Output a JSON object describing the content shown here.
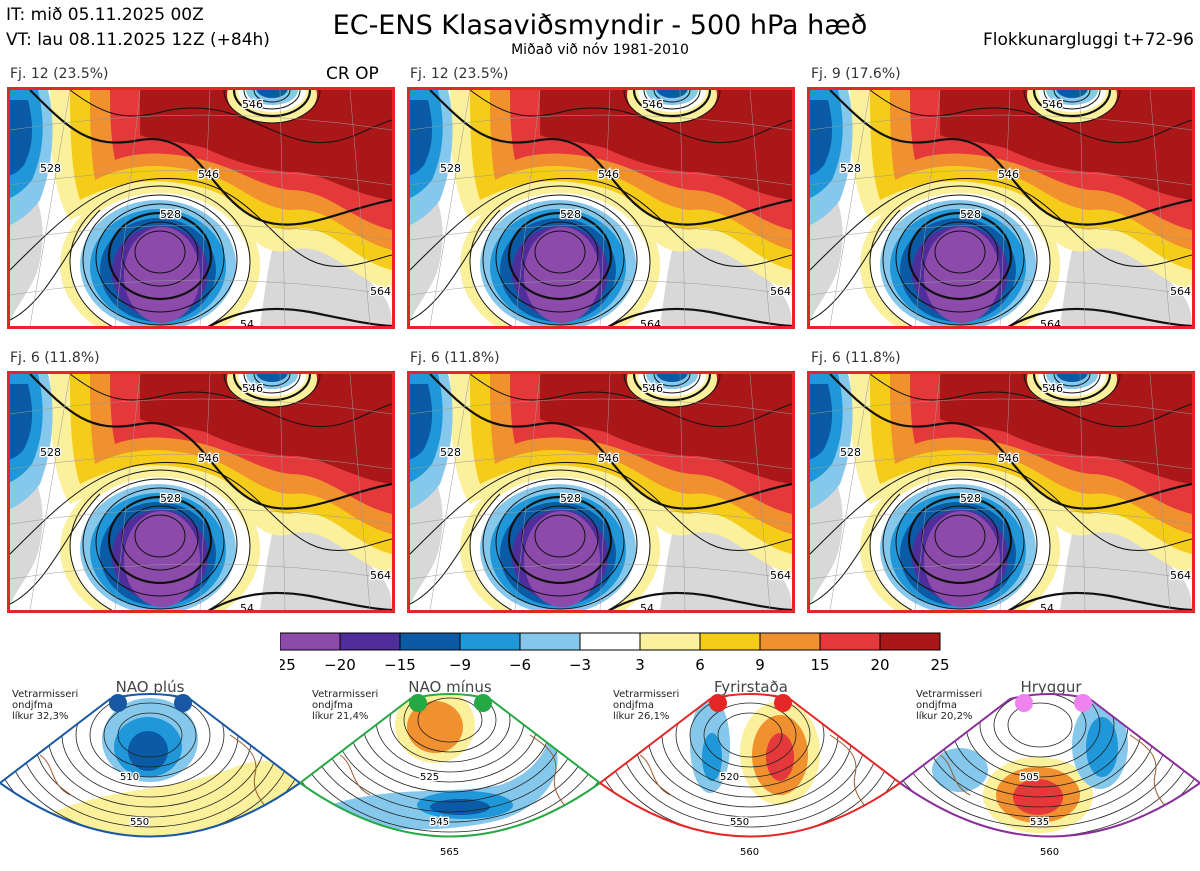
{
  "header": {
    "initial_time": "IT: mið 05.11.2025 00Z",
    "valid_time": "VT: lau 08.11.2025 12Z  (+84h)",
    "title": "EC-ENS Klasaviðsmyndir - 500 hPa hæð",
    "subtitle": "Miðað við nóv 1981-2010",
    "window": "Flokkunargluggi t+72-96"
  },
  "panels": [
    {
      "label": "Fj. 12 (23.5%)",
      "tag": "CR OP",
      "contours": [
        "528",
        "546",
        "528",
        "546",
        "564",
        "54"
      ]
    },
    {
      "label": "Fj. 12 (23.5%)",
      "tag": "",
      "contours": [
        "528",
        "546",
        "528",
        "546",
        "564",
        "564"
      ]
    },
    {
      "label": "Fj. 9 (17.6%)",
      "tag": "",
      "contours": [
        "528",
        "546",
        "528",
        "546",
        "564",
        "564"
      ]
    },
    {
      "label": "Fj. 6 (11.8%)",
      "tag": "",
      "contours": [
        "528",
        "546",
        "528",
        "546",
        "564",
        "54"
      ]
    },
    {
      "label": "Fj. 6 (11.8%)",
      "tag": "",
      "contours": [
        "528",
        "546",
        "528",
        "546",
        "564",
        "54"
      ]
    },
    {
      "label": "Fj. 6 (11.8%)",
      "tag": "",
      "contours": [
        "528",
        "546",
        "528",
        "546",
        "564",
        "54"
      ]
    }
  ],
  "colorbar": {
    "ticks": [
      "−25",
      "−20",
      "−15",
      "−9",
      "−6",
      "−3",
      "3",
      "6",
      "9",
      "15",
      "20",
      "25"
    ],
    "colors": [
      "#8c4bab",
      "#4f2d9b",
      "#0b5aa5",
      "#1f97d8",
      "#86c8ec",
      "#ffffff",
      "#fbf09b",
      "#f6cc1b",
      "#f0902e",
      "#e5383a",
      "#a91719"
    ]
  },
  "regimes": [
    {
      "name": "NAO plús",
      "info": [
        "Vetrarmisseri",
        "ondjfma",
        "líkur 32,3%"
      ],
      "color": "#1857a4",
      "contours": [
        "510",
        "550"
      ]
    },
    {
      "name": "NAO mínus",
      "info": [
        "Vetrarmisseri",
        "ondjfma",
        "líkur 21,4%"
      ],
      "color": "#26a844",
      "contours": [
        "525",
        "545",
        "565"
      ]
    },
    {
      "name": "Fyrirstaða",
      "info": [
        "Vetrarmisseri",
        "ondjfma",
        "líkur 26,1%"
      ],
      "color": "#e32727",
      "contours": [
        "520",
        "550",
        "560"
      ]
    },
    {
      "name": "Hryggur",
      "info": [
        "Vetrarmisseri",
        "ondjfma",
        "líkur 20,2%"
      ],
      "color": "#8a2f9a",
      "contours": [
        "505",
        "535",
        "560"
      ]
    }
  ]
}
